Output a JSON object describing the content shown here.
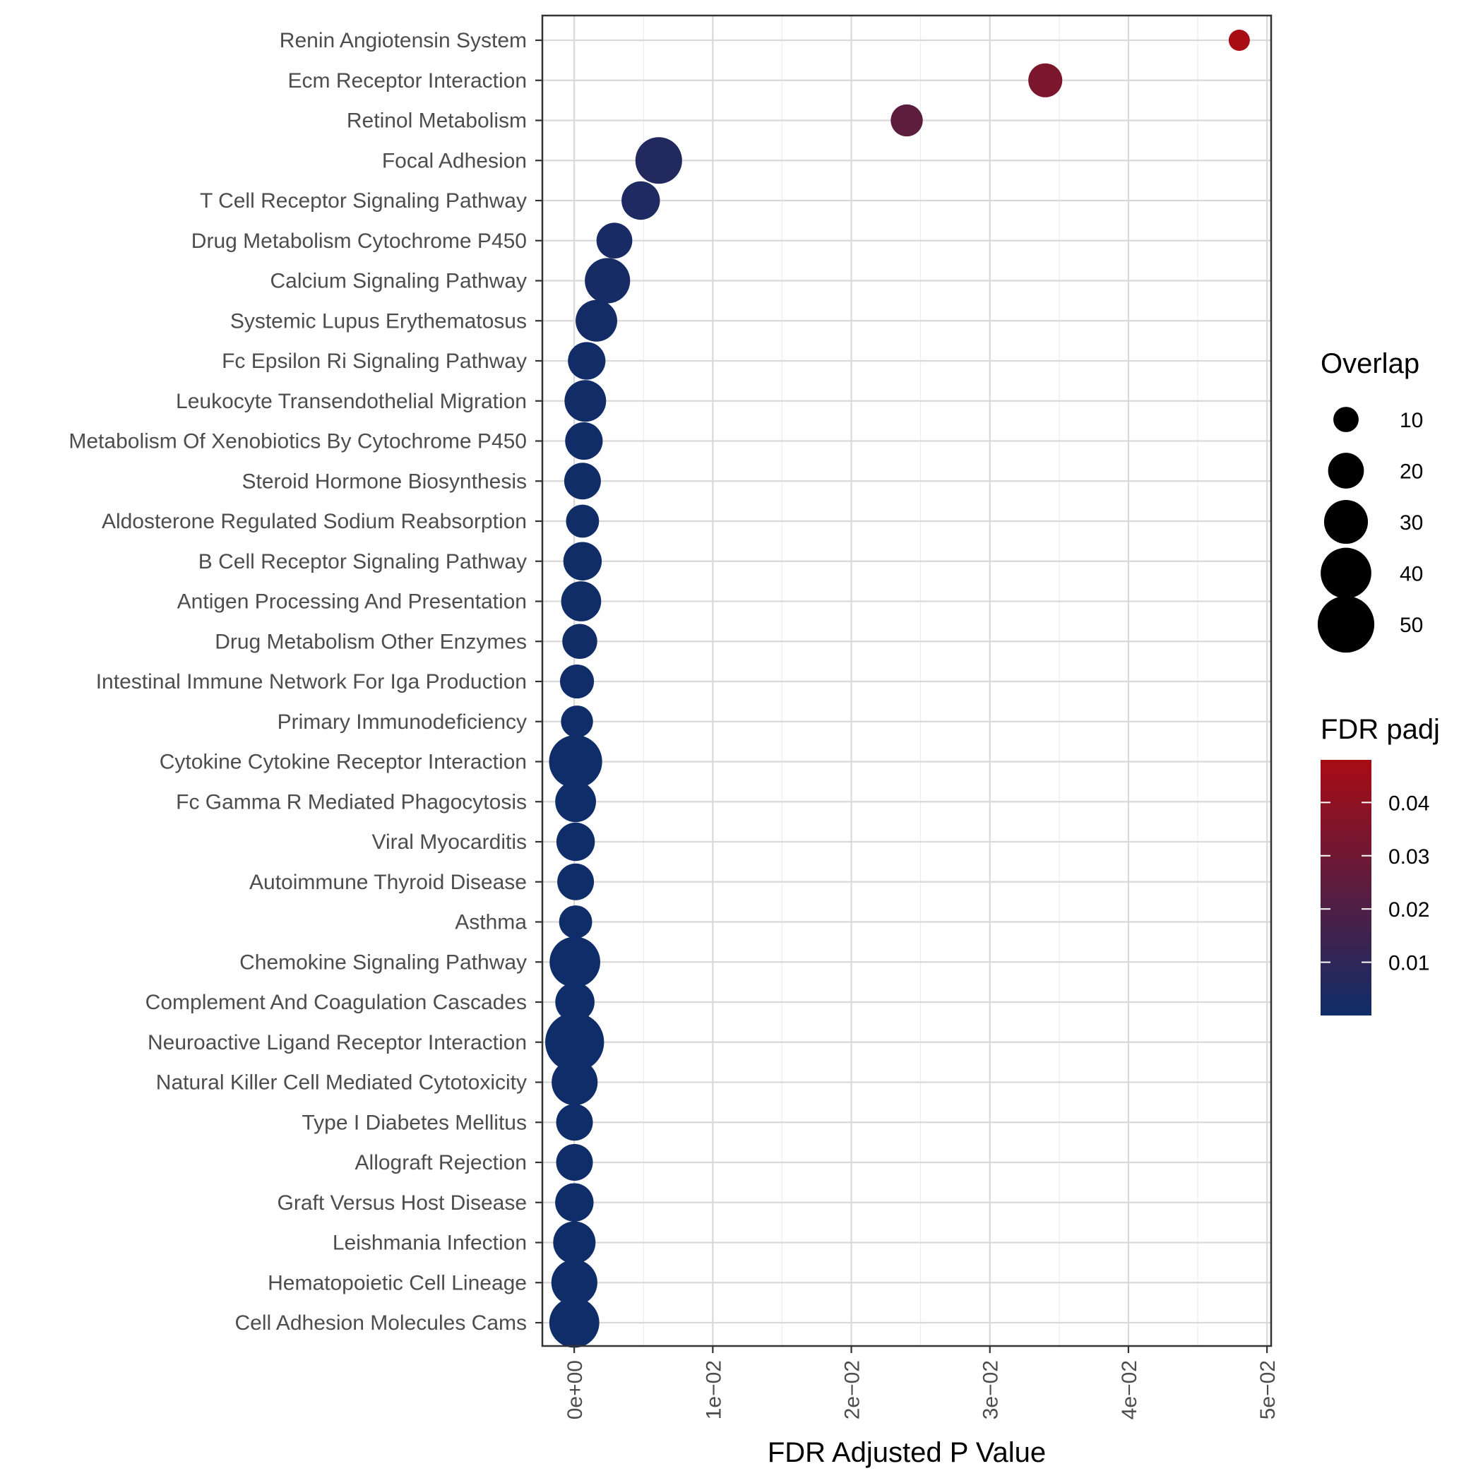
{
  "chart_data": {
    "type": "scatter",
    "xlabel": "FDR Adjusted P Value",
    "ylabel": "",
    "xlim": [
      -0.0023,
      0.0503
    ],
    "x_ticks": [
      {
        "value": 0.0,
        "label": "0e+00"
      },
      {
        "value": 0.01,
        "label": "1e−02"
      },
      {
        "value": 0.02,
        "label": "2e−02"
      },
      {
        "value": 0.03,
        "label": "3e−02"
      },
      {
        "value": 0.04,
        "label": "4e−02"
      },
      {
        "value": 0.05,
        "label": "5e−02"
      }
    ],
    "grid": true,
    "categories": [
      "Renin Angiotensin System",
      "Ecm Receptor Interaction",
      "Retinol Metabolism",
      "Focal Adhesion",
      "T Cell Receptor Signaling Pathway",
      "Drug Metabolism Cytochrome P450",
      "Calcium Signaling Pathway",
      "Systemic Lupus Erythematosus",
      "Fc Epsilon Ri Signaling Pathway",
      "Leukocyte Transendothelial Migration",
      "Metabolism Of Xenobiotics By Cytochrome P450",
      "Steroid Hormone Biosynthesis",
      "Aldosterone Regulated Sodium Reabsorption",
      "B Cell Receptor Signaling Pathway",
      "Antigen Processing And Presentation",
      "Drug Metabolism Other Enzymes",
      "Intestinal Immune Network For Iga Production",
      "Primary Immunodeficiency",
      "Cytokine Cytokine Receptor Interaction",
      "Fc Gamma R Mediated Phagocytosis",
      "Viral Myocarditis",
      "Autoimmune Thyroid Disease",
      "Asthma",
      "Chemokine Signaling Pathway",
      "Complement And Coagulation Cascades",
      "Neuroactive Ligand Receptor Interaction",
      "Natural Killer Cell Mediated Cytotoxicity",
      "Type I Diabetes Mellitus",
      "Allograft Rejection",
      "Graft Versus Host Disease",
      "Leishmania Infection",
      "Hematopoietic Cell Lineage",
      "Cell Adhesion Molecules Cams"
    ],
    "points": [
      {
        "term": "Renin Angiotensin System",
        "x": 0.048,
        "overlap": 7,
        "padj": 0.048
      },
      {
        "term": "Ecm Receptor Interaction",
        "x": 0.034,
        "overlap": 18,
        "padj": 0.034
      },
      {
        "term": "Retinol Metabolism",
        "x": 0.024,
        "overlap": 16,
        "padj": 0.024
      },
      {
        "term": "Focal Adhesion",
        "x": 0.0061,
        "overlap": 34,
        "padj": 0.0061
      },
      {
        "term": "T Cell Receptor Signaling Pathway",
        "x": 0.0048,
        "overlap": 23,
        "padj": 0.0048
      },
      {
        "term": "Drug Metabolism Cytochrome P450",
        "x": 0.0029,
        "overlap": 20,
        "padj": 0.0029
      },
      {
        "term": "Calcium Signaling Pathway",
        "x": 0.0024,
        "overlap": 32,
        "padj": 0.0024
      },
      {
        "term": "Systemic Lupus Erythematosus",
        "x": 0.0016,
        "overlap": 27,
        "padj": 0.0016
      },
      {
        "term": "Fc Epsilon Ri Signaling Pathway",
        "x": 0.0009,
        "overlap": 22,
        "padj": 0.0009
      },
      {
        "term": "Leukocyte Transendothelial Migration",
        "x": 0.0008,
        "overlap": 27,
        "padj": 0.0008
      },
      {
        "term": "Metabolism Of Xenobiotics By Cytochrome P450",
        "x": 0.0007,
        "overlap": 22,
        "padj": 0.0007
      },
      {
        "term": "Steroid Hormone Biosynthesis",
        "x": 0.0006,
        "overlap": 21,
        "padj": 0.0006
      },
      {
        "term": "Aldosterone Regulated Sodium Reabsorption",
        "x": 0.0006,
        "overlap": 17,
        "padj": 0.0006
      },
      {
        "term": "B Cell Receptor Signaling Pathway",
        "x": 0.0006,
        "overlap": 23,
        "padj": 0.0006
      },
      {
        "term": "Antigen Processing And Presentation",
        "x": 0.0005,
        "overlap": 25,
        "padj": 0.0005
      },
      {
        "term": "Drug Metabolism Other Enzymes",
        "x": 0.0004,
        "overlap": 19,
        "padj": 0.0004
      },
      {
        "term": "Intestinal Immune Network For Iga Production",
        "x": 0.0002,
        "overlap": 18,
        "padj": 0.0002
      },
      {
        "term": "Primary Immunodeficiency",
        "x": 0.0002,
        "overlap": 16,
        "padj": 0.0002
      },
      {
        "term": "Cytokine Cytokine Receptor Interaction",
        "x": 0.0001,
        "overlap": 44,
        "padj": 0.0001
      },
      {
        "term": "Fc Gamma R Mediated Phagocytosis",
        "x": 0.0001,
        "overlap": 26,
        "padj": 0.0001
      },
      {
        "term": "Viral Myocarditis",
        "x": 0.0001,
        "overlap": 23,
        "padj": 0.0001
      },
      {
        "term": "Autoimmune Thyroid Disease",
        "x": 0.0001,
        "overlap": 21,
        "padj": 0.0001
      },
      {
        "term": "Asthma",
        "x": 0.0001,
        "overlap": 17,
        "padj": 0.0001
      },
      {
        "term": "Chemokine Signaling Pathway",
        "x": 5e-05,
        "overlap": 40,
        "padj": 5e-05
      },
      {
        "term": "Complement And Coagulation Cascades",
        "x": 5e-05,
        "overlap": 24,
        "padj": 5e-05
      },
      {
        "term": "Neuroactive Ligand Receptor Interaction",
        "x": 3e-05,
        "overlap": 54,
        "padj": 3e-05
      },
      {
        "term": "Natural Killer Cell Mediated Cytotoxicity",
        "x": 3e-05,
        "overlap": 33,
        "padj": 3e-05
      },
      {
        "term": "Type I Diabetes Mellitus",
        "x": 2e-05,
        "overlap": 21,
        "padj": 2e-05
      },
      {
        "term": "Allograft Rejection",
        "x": 2e-05,
        "overlap": 21,
        "padj": 2e-05
      },
      {
        "term": "Graft Versus Host Disease",
        "x": 1e-05,
        "overlap": 23,
        "padj": 1e-05
      },
      {
        "term": "Leishmania Infection",
        "x": 1e-05,
        "overlap": 28,
        "padj": 1e-05
      },
      {
        "term": "Hematopoietic Cell Lineage",
        "x": 1e-05,
        "overlap": 33,
        "padj": 1e-05
      },
      {
        "term": "Cell Adhesion Molecules Cams",
        "x": 5e-06,
        "overlap": 39,
        "padj": 5e-06
      }
    ],
    "size_legend": {
      "title": "Overlap",
      "values": [
        10,
        20,
        30,
        40,
        50
      ],
      "labels": [
        "10",
        "20",
        "30",
        "40",
        "50"
      ]
    },
    "color_legend": {
      "title": "FDR padj",
      "min": 0.0,
      "max": 0.048,
      "ticks": [
        {
          "value": 0.04,
          "label": "0.04"
        },
        {
          "value": 0.03,
          "label": "0.03"
        },
        {
          "value": 0.02,
          "label": "0.02"
        },
        {
          "value": 0.01,
          "label": "0.01"
        }
      ],
      "low_color": "#0f2d69",
      "high_color": "#a80c14"
    },
    "legend_position": "right"
  }
}
